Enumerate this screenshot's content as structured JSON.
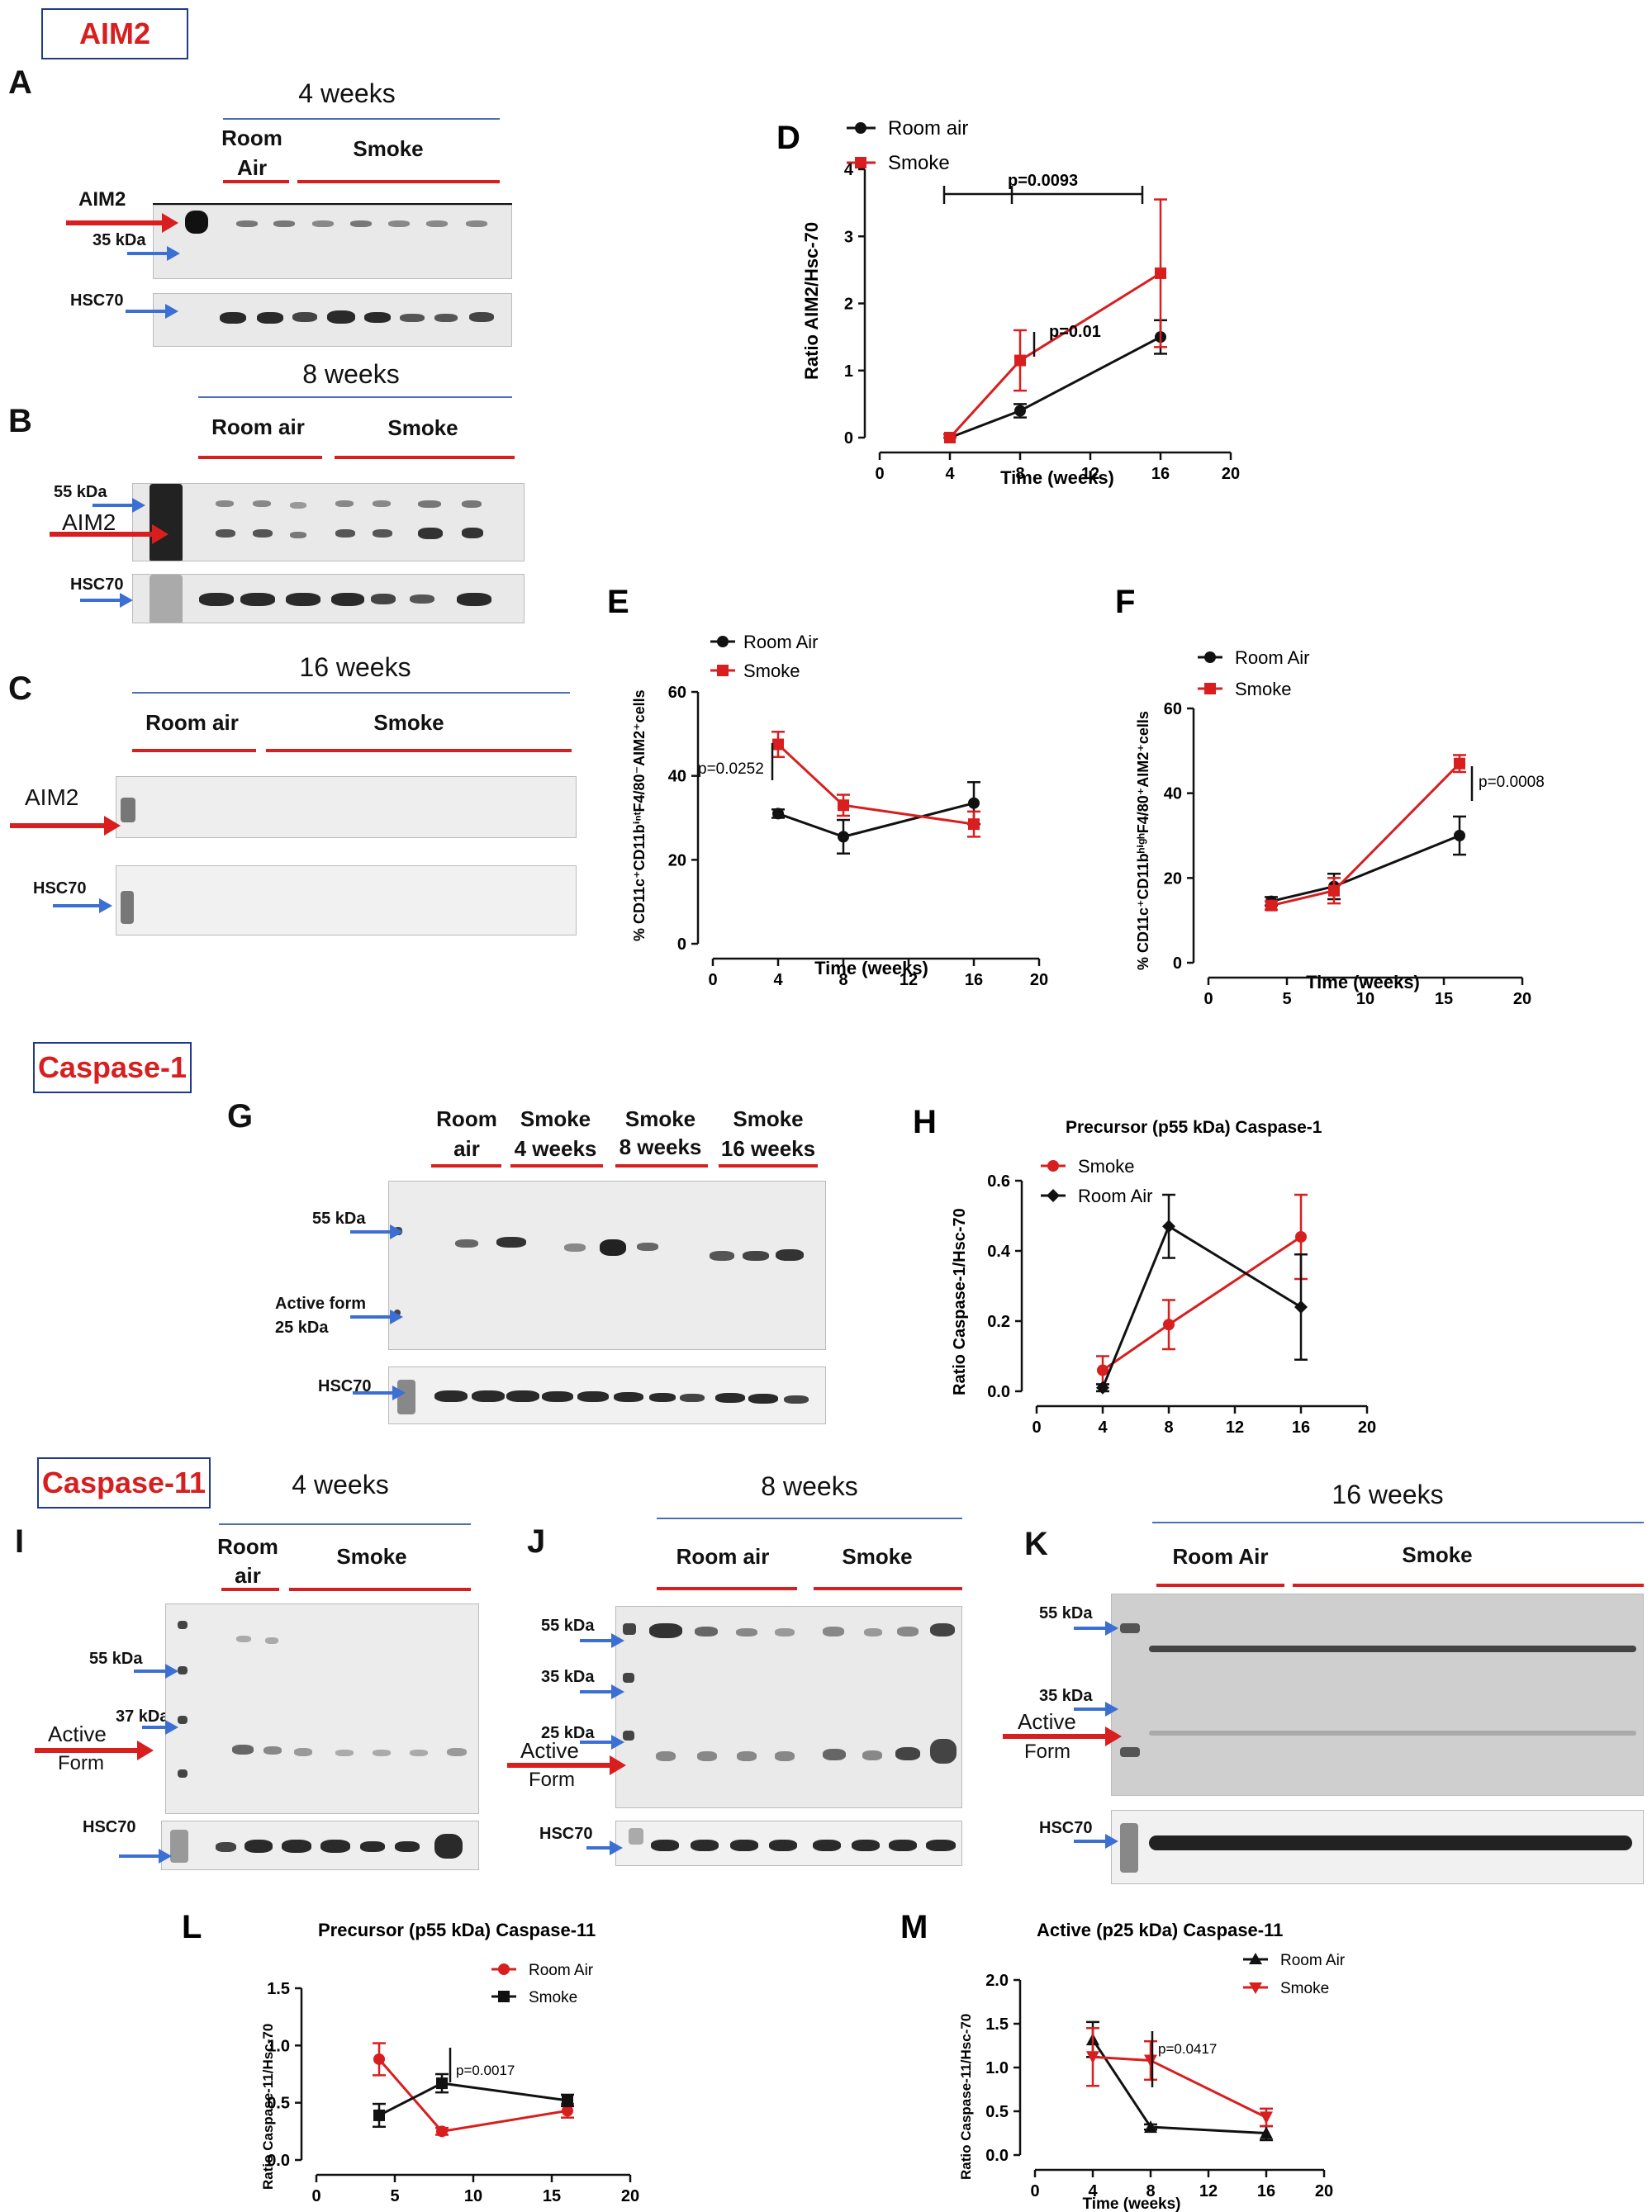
{
  "sections": {
    "aim2": "AIM2",
    "caspase1": "Caspase-1",
    "caspase11": "Caspase-11"
  },
  "panels": {
    "A": "A",
    "B": "B",
    "C": "C",
    "D": "D",
    "E": "E",
    "F": "F",
    "G": "G",
    "H": "H",
    "I": "I",
    "J": "J",
    "K": "K",
    "L": "L",
    "M": "M"
  },
  "blot_labels": {
    "four_weeks": "4 weeks",
    "eight_weeks": "8 weeks",
    "sixteen_weeks": "16 weeks",
    "room_air_split_1": "Room",
    "room_air_split_2": "Air",
    "room_air": "Room air",
    "room_air_cap": "Room Air",
    "room_air_lower_1": "Room",
    "room_air_lower_2": "air",
    "smoke": "Smoke",
    "aim2": "AIM2",
    "hsc70": "HSC70",
    "kda35": "35 kDa",
    "kda55": "55 kDa",
    "kda37": "37 kDa",
    "kda25": "25 kDa",
    "active_form_1": "Active",
    "active_form_2": "Form",
    "active_form_g1": "Active form",
    "active_form_g2": "25 kDa",
    "smoke4_1": "Smoke",
    "smoke4_2": "4 weeks",
    "smoke8_1": "Smoke",
    "smoke8_2": "8 weeks",
    "smoke16_1": "Smoke",
    "smoke16_2": "16 weeks"
  },
  "colors": {
    "room_air": "#111111",
    "smoke": "#d81e1e",
    "label_red": "#d81e1e",
    "accent_blue": "#4a6fb5"
  },
  "chart_data": [
    {
      "id": "D",
      "type": "line",
      "ylabel": "Ratio  AIM2/Hsc-70",
      "xlabel": "Time (weeks)",
      "xlim": [
        0,
        20
      ],
      "ylim": [
        0,
        4
      ],
      "xticks": [
        0,
        4,
        8,
        12,
        16,
        20
      ],
      "yticks": [
        0,
        1,
        2,
        3,
        4
      ],
      "legend": "top-left",
      "series": [
        {
          "name": "Room air",
          "x": [
            4,
            8,
            16
          ],
          "y": [
            0,
            0.4,
            1.5
          ],
          "err": [
            0.05,
            0.1,
            0.25
          ],
          "marker": "circle",
          "color": "#111111"
        },
        {
          "name": "Smoke",
          "x": [
            4,
            8,
            16
          ],
          "y": [
            0,
            1.15,
            2.45
          ],
          "err": [
            0.05,
            0.45,
            1.1
          ],
          "marker": "square",
          "color": "#d81e1e"
        }
      ],
      "annotations": [
        "p=0.0093",
        "p=0.01"
      ]
    },
    {
      "id": "E",
      "type": "line",
      "ylabel": "% CD11c⁺CD11bⁱⁿᵗF4/80⁻AIM2⁺cells",
      "xlabel": "Time (weeks)",
      "xlim": [
        0,
        20
      ],
      "ylim": [
        0,
        60
      ],
      "xticks": [
        0,
        4,
        8,
        12,
        16,
        20
      ],
      "yticks": [
        0,
        20,
        40,
        60
      ],
      "legend": "top-left",
      "series": [
        {
          "name": "Room Air",
          "x": [
            4,
            8,
            16
          ],
          "y": [
            31,
            25.5,
            33.5
          ],
          "err": [
            1,
            4,
            5
          ],
          "marker": "circle",
          "color": "#111111"
        },
        {
          "name": "Smoke",
          "x": [
            4,
            8,
            16
          ],
          "y": [
            47.5,
            33,
            28.5
          ],
          "err": [
            3,
            2.5,
            3
          ],
          "marker": "square",
          "color": "#d81e1e"
        }
      ],
      "annotations": [
        "p=0.0252"
      ]
    },
    {
      "id": "F",
      "type": "line",
      "ylabel": "% CD11c⁺CD11bʰⁱᵍʰF4/80⁺AIM2⁺cells",
      "xlabel": "Time (weeks)",
      "xlim": [
        0,
        20
      ],
      "ylim": [
        0,
        60
      ],
      "xticks": [
        0,
        5,
        10,
        15,
        20
      ],
      "yticks": [
        0,
        20,
        40,
        60
      ],
      "legend": "top-left",
      "series": [
        {
          "name": "Room Air",
          "x": [
            4,
            8,
            16
          ],
          "y": [
            14.5,
            18,
            30
          ],
          "err": [
            1,
            3,
            4.5
          ],
          "marker": "circle",
          "color": "#111111"
        },
        {
          "name": "Smoke",
          "x": [
            4,
            8,
            16
          ],
          "y": [
            13.5,
            17,
            47
          ],
          "err": [
            1,
            3,
            2
          ],
          "marker": "square",
          "color": "#d81e1e"
        }
      ],
      "annotations": [
        "p=0.0008"
      ]
    },
    {
      "id": "H",
      "type": "line",
      "title": "Precursor (p55 kDa) Caspase-1",
      "ylabel": "Ratio Caspase-1/Hsc-70",
      "xlabel": "",
      "xlim": [
        0,
        20
      ],
      "ylim": [
        0,
        0.6
      ],
      "xticks": [
        0,
        4,
        8,
        12,
        16,
        20
      ],
      "yticks": [
        0.0,
        0.2,
        0.4,
        0.6
      ],
      "legend": "top-left",
      "series": [
        {
          "name": "Smoke",
          "x": [
            4,
            8,
            16
          ],
          "y": [
            0.06,
            0.19,
            0.44
          ],
          "err": [
            0.04,
            0.07,
            0.12
          ],
          "marker": "circle",
          "color": "#d81e1e"
        },
        {
          "name": "Room Air",
          "x": [
            4,
            8,
            16
          ],
          "y": [
            0.01,
            0.47,
            0.24
          ],
          "err": [
            0.01,
            0.09,
            0.15
          ],
          "marker": "diamond",
          "color": "#111111"
        }
      ],
      "annotations": []
    },
    {
      "id": "L",
      "type": "line",
      "title": "Precursor (p55 kDa) Caspase-11",
      "ylabel": "Ratio Caspase-11/Hsc-70",
      "xlabel": "",
      "xlim": [
        0,
        20
      ],
      "ylim": [
        0,
        1.5
      ],
      "xticks": [
        0,
        5,
        10,
        15,
        20
      ],
      "yticks": [
        0.0,
        0.5,
        1.0,
        1.5
      ],
      "legend": "top-right",
      "series": [
        {
          "name": "Room Air",
          "x": [
            4,
            8,
            16
          ],
          "y": [
            0.88,
            0.25,
            0.43
          ],
          "err": [
            0.14,
            0.03,
            0.06
          ],
          "marker": "circle",
          "color": "#d81e1e"
        },
        {
          "name": "Smoke",
          "x": [
            4,
            8,
            16
          ],
          "y": [
            0.39,
            0.67,
            0.52
          ],
          "err": [
            0.1,
            0.08,
            0.05
          ],
          "marker": "square",
          "color": "#111111"
        }
      ],
      "annotations": [
        "p=0.0017"
      ]
    },
    {
      "id": "M",
      "type": "line",
      "title": "Active (p25 kDa) Caspase-11",
      "ylabel": "Ratio Caspase-11/Hsc-70",
      "xlabel": "Time (weeks)",
      "xlim": [
        0,
        20
      ],
      "ylim": [
        0,
        2.0
      ],
      "xticks": [
        0,
        4,
        8,
        12,
        16,
        20
      ],
      "yticks": [
        0.0,
        0.5,
        1.0,
        1.5,
        2.0
      ],
      "legend": "top-right",
      "series": [
        {
          "name": "Room Air",
          "x": [
            4,
            8,
            16
          ],
          "y": [
            1.32,
            0.32,
            0.25
          ],
          "err": [
            0.2,
            0.03,
            0.08
          ],
          "marker": "triangle-up",
          "color": "#111111"
        },
        {
          "name": "Smoke",
          "x": [
            4,
            8,
            16
          ],
          "y": [
            1.12,
            1.08,
            0.43
          ],
          "err": [
            0.33,
            0.22,
            0.1
          ],
          "marker": "triangle-down",
          "color": "#d81e1e"
        }
      ],
      "annotations": [
        "p=0.0417"
      ]
    }
  ]
}
